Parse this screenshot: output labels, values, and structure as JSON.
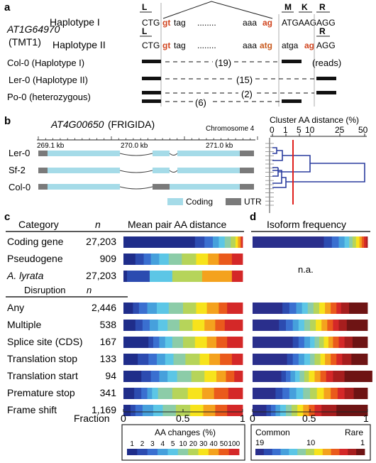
{
  "panel_a": {
    "label": "a",
    "gene_id": "AT1G64970",
    "gene_name": "(TMT1)",
    "haplotype1": {
      "name": "Haplotype I",
      "aa_left": "L",
      "codon_left": "CTG",
      "splice_donor": "gt",
      "intron_start": "tag",
      "dots": "........",
      "intron_end": "aaa",
      "splice_acceptor": "ag",
      "aa_right": [
        "M",
        "K",
        "R"
      ],
      "exon_right": "ATGAAG",
      "codon_end": "AGG"
    },
    "haplotype2": {
      "name": "Haplotype II",
      "aa_left": "L",
      "codon_left": "CTG",
      "splice_donor": "gt",
      "intron_start": "tag",
      "dots": "........",
      "intron_end": "aaa",
      "mutated": "atg",
      "middle": "atga",
      "acceptor2": "ag",
      "aa_right": "R",
      "codon_end": "AGG"
    },
    "rows": [
      {
        "label": "Col-0 (Haplotype I)",
        "count": "(19)",
        "extra": "(reads)"
      },
      {
        "label": "Ler-0 (Haplotype II)",
        "count": "(15)"
      },
      {
        "label": "Po-0 (heterozygous)",
        "count": "(2)",
        "count2": "(6)"
      }
    ]
  },
  "panel_b": {
    "label": "b",
    "gene_id": "AT4G00650",
    "gene_name": "(FRIGIDA)",
    "chromosome": "Chromosome 4",
    "scale_ticks": [
      "269.1 kb",
      "270.0 kb",
      "271.0 kb"
    ],
    "accessions": [
      "Ler-0",
      "Sf-2",
      "Col-0"
    ],
    "legend_coding": "Coding",
    "legend_utr": "UTR",
    "cluster_title": "Cluster AA distance (%)",
    "cluster_ticks": [
      "0",
      "1",
      "5",
      "10",
      "25",
      "50"
    ],
    "colors": {
      "coding": "#a5dbe8",
      "utr": "#7a7a7a",
      "tree": "#2a3c9e",
      "threshold": "#e0201c"
    }
  },
  "panel_c": {
    "label": "c",
    "header_category": "Category",
    "header_n": "n",
    "header_distance": "Mean pair AA distance",
    "categories": [
      {
        "label": "Coding gene",
        "n": "27,203"
      },
      {
        "label": "Pseudogene",
        "n": "909"
      },
      {
        "label": "A. lyrata",
        "n": "27,203"
      }
    ],
    "header_disruption": "Disruption",
    "header_n2": "n",
    "disruptions": [
      {
        "label": "Any",
        "n": "2,446"
      },
      {
        "label": "Multiple",
        "n": "538"
      },
      {
        "label": "Splice site (CDS)",
        "n": "167"
      },
      {
        "label": "Translation stop",
        "n": "133"
      },
      {
        "label": "Translation start",
        "n": "94"
      },
      {
        "label": "Premature stop",
        "n": "341"
      },
      {
        "label": "Frame shift",
        "n": "1,169"
      }
    ],
    "fraction_label": "Fraction",
    "axis_ticks": [
      "0",
      "0.5",
      "1"
    ],
    "legend_title": "AA changes (%)",
    "legend_values": [
      "1",
      "2",
      "3",
      "4",
      "5",
      "10",
      "20",
      "30",
      "40",
      "50",
      "100"
    ]
  },
  "panel_d": {
    "label": "d",
    "header": "Isoform frequency",
    "na_text": "n.a.",
    "axis_ticks": [
      "0",
      "0.5",
      "1"
    ],
    "legend_common": "Common",
    "legend_rare": "Rare",
    "legend_values": [
      "19",
      "10",
      "1"
    ]
  },
  "chart_data": [
    {
      "type": "bar",
      "stacked": true,
      "orientation": "horizontal",
      "title": "Mean pair AA distance",
      "xlabel": "Fraction",
      "xlim": [
        0,
        1
      ],
      "color_scale_label": "AA changes (%)",
      "color_scale": [
        "1",
        "2",
        "3",
        "4",
        "5",
        "10",
        "20",
        "30",
        "40",
        "50",
        "100"
      ],
      "colors": [
        "#1f2d8a",
        "#2c4bb0",
        "#3a6fd0",
        "#46a0dc",
        "#5cc6e6",
        "#8ccca8",
        "#b6d45a",
        "#f7e31c",
        "#f4a21e",
        "#ea5a1c",
        "#d42828"
      ],
      "categories": [
        "Coding gene",
        "Pseudogene",
        "A. lyrata",
        "Any",
        "Multiple",
        "Splice site (CDS)",
        "Translation stop",
        "Translation start",
        "Premature stop",
        "Frame shift"
      ],
      "fractions": [
        [
          0.6,
          0.08,
          0.07,
          0.05,
          0.05,
          0.05,
          0.04,
          0.02,
          0.02,
          0.01,
          0.01
        ],
        [
          0.1,
          0.07,
          0.06,
          0.07,
          0.08,
          0.11,
          0.12,
          0.1,
          0.09,
          0.11,
          0.09
        ],
        [
          0.03,
          0.19,
          0.0,
          0.0,
          0.19,
          0.0,
          0.25,
          0.0,
          0.25,
          0.0,
          0.09
        ],
        [
          0.08,
          0.05,
          0.07,
          0.08,
          0.1,
          0.12,
          0.11,
          0.09,
          0.1,
          0.07,
          0.13
        ],
        [
          0.1,
          0.06,
          0.06,
          0.07,
          0.08,
          0.1,
          0.11,
          0.1,
          0.09,
          0.08,
          0.15
        ],
        [
          0.21,
          0.04,
          0.05,
          0.05,
          0.06,
          0.09,
          0.1,
          0.1,
          0.08,
          0.09,
          0.13
        ],
        [
          0.12,
          0.09,
          0.07,
          0.07,
          0.07,
          0.1,
          0.12,
          0.08,
          0.09,
          0.1,
          0.09
        ],
        [
          0.15,
          0.08,
          0.07,
          0.07,
          0.08,
          0.12,
          0.11,
          0.1,
          0.08,
          0.07,
          0.07
        ],
        [
          0.09,
          0.06,
          0.05,
          0.04,
          0.05,
          0.12,
          0.13,
          0.12,
          0.1,
          0.12,
          0.12
        ],
        [
          0.06,
          0.04,
          0.06,
          0.09,
          0.08,
          0.11,
          0.12,
          0.11,
          0.1,
          0.1,
          0.13
        ]
      ]
    },
    {
      "type": "bar",
      "stacked": true,
      "orientation": "horizontal",
      "title": "Isoform frequency",
      "xlim": [
        0,
        1
      ],
      "color_scale": [
        "Common",
        "Rare"
      ],
      "colors": [
        "#2a2f8c",
        "#2c4bb0",
        "#3a6fd0",
        "#46a0dc",
        "#5cc6e6",
        "#8ccca8",
        "#b6d45a",
        "#f7e31c",
        "#f4a21e",
        "#ea5a1c",
        "#d42828",
        "#a61e1e",
        "#6e1414"
      ],
      "categories": [
        "Coding gene",
        "Any",
        "Multiple",
        "Splice site (CDS)",
        "Translation stop",
        "Translation start",
        "Premature stop",
        "Frame shift"
      ],
      "fractions": [
        [
          0.62,
          0.07,
          0.06,
          0.05,
          0.04,
          0.03,
          0.03,
          0.03,
          0.02,
          0.02,
          0.02,
          0.01,
          0.0
        ],
        [
          0.26,
          0.06,
          0.06,
          0.05,
          0.05,
          0.05,
          0.05,
          0.05,
          0.05,
          0.05,
          0.04,
          0.07,
          0.16
        ],
        [
          0.23,
          0.06,
          0.06,
          0.05,
          0.05,
          0.05,
          0.05,
          0.05,
          0.05,
          0.05,
          0.05,
          0.07,
          0.18
        ],
        [
          0.35,
          0.05,
          0.05,
          0.05,
          0.04,
          0.04,
          0.04,
          0.04,
          0.04,
          0.05,
          0.05,
          0.07,
          0.13
        ],
        [
          0.3,
          0.05,
          0.05,
          0.05,
          0.05,
          0.04,
          0.05,
          0.04,
          0.05,
          0.05,
          0.05,
          0.08,
          0.14
        ],
        [
          0.25,
          0.04,
          0.04,
          0.04,
          0.04,
          0.04,
          0.04,
          0.05,
          0.05,
          0.05,
          0.06,
          0.1,
          0.24
        ],
        [
          0.2,
          0.06,
          0.06,
          0.06,
          0.06,
          0.06,
          0.06,
          0.06,
          0.06,
          0.06,
          0.06,
          0.08,
          0.12
        ],
        [
          0.12,
          0.04,
          0.04,
          0.04,
          0.05,
          0.05,
          0.05,
          0.05,
          0.05,
          0.05,
          0.06,
          0.13,
          0.27
        ]
      ]
    }
  ]
}
